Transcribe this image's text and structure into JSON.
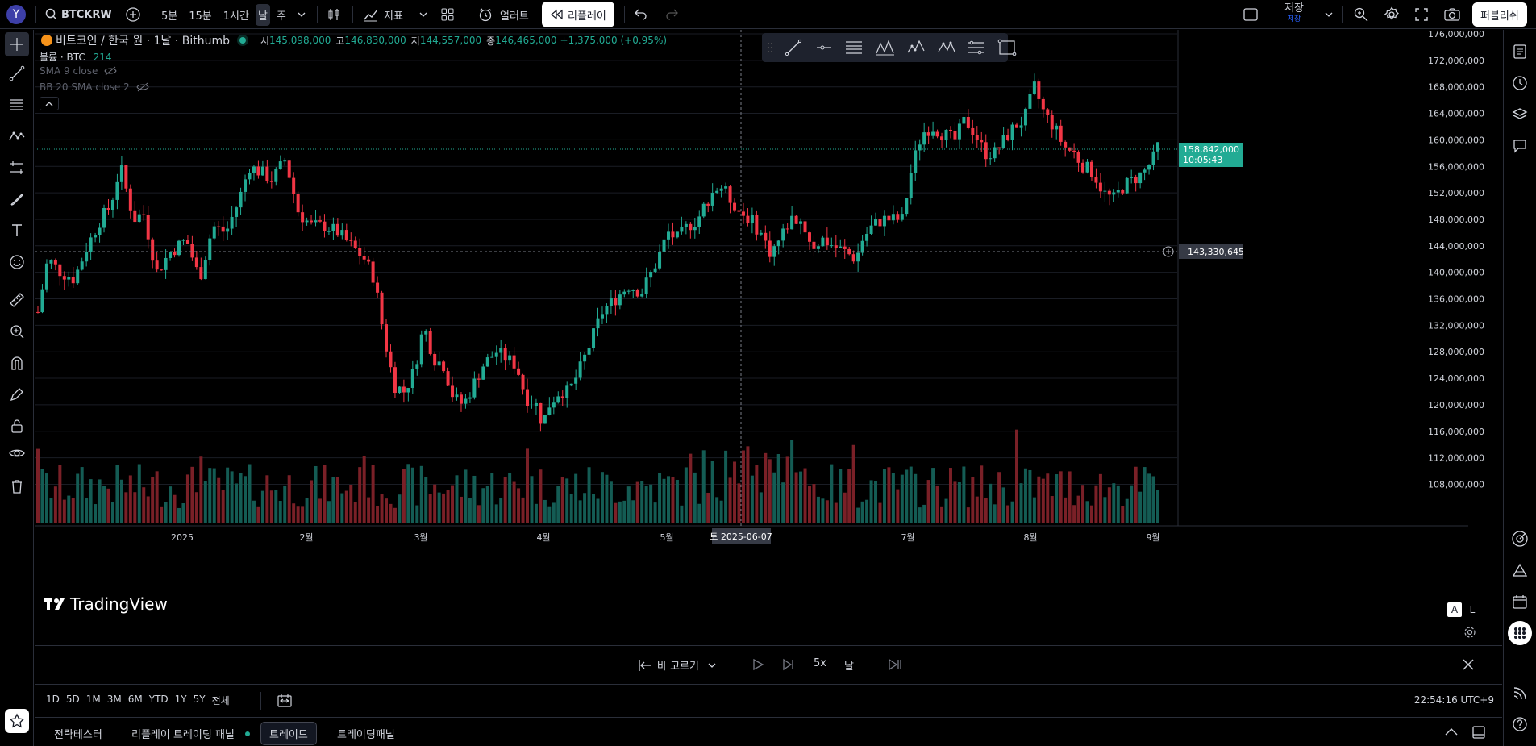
{
  "topbar": {
    "avatar": "Y",
    "symbol": "BTCKRW",
    "intervals": [
      "5분",
      "15분",
      "1시간",
      "날",
      "주"
    ],
    "active_interval": "날",
    "indicators": "지표",
    "alerts": "얼러트",
    "replay": "리플레이",
    "save": "저장",
    "save_sub": "저장",
    "publish": "퍼블리쉬"
  },
  "legend": {
    "title": "비트코인 / 한국 원 · 1날 · Bithumb",
    "o_label": "시",
    "o": "145,098,000",
    "h_label": "고",
    "h": "146,830,000",
    "l_label": "저",
    "l": "144,557,000",
    "c_label": "종",
    "c": "146,465,000",
    "change": "+1,375,000 (+0.95%)",
    "volume_label": "볼륨 · BTC",
    "volume": "214",
    "sma": "SMA 9 close",
    "bb": "BB 20 SMA close 2"
  },
  "price_axis": [
    "176,000,000",
    "172,000,000",
    "168,000,000",
    "164,000,000",
    "160,000,000",
    "156,000,000",
    "152,000,000",
    "148,000,000",
    "144,000,000",
    "140,000,000",
    "136,000,000",
    "132,000,000",
    "128,000,000",
    "124,000,000",
    "120,000,000",
    "116,000,000",
    "112,000,000",
    "108,000,000"
  ],
  "last_price": {
    "price": "158,842,000",
    "countdown": "10:05:43"
  },
  "crosshair": {
    "price": "143,330,645",
    "date": "토 2025-06-07"
  },
  "time_axis": [
    "2025",
    "2월",
    "3월",
    "4월",
    "5월",
    "7월",
    "8월",
    "9월"
  ],
  "scale_buttons": [
    "A",
    "L"
  ],
  "watermark": "TradingView",
  "replay_bar": {
    "select_bar": "바 고르기",
    "speed": "5x",
    "interval": "날"
  },
  "range_bar": {
    "ranges": [
      "1D",
      "5D",
      "1M",
      "3M",
      "6M",
      "YTD",
      "1Y",
      "5Y",
      "전체"
    ],
    "clock": "22:54:16 UTC+9"
  },
  "panels": {
    "tabs": [
      "전략테스터",
      "리플레이 트레이딩 패널",
      "트레이드",
      "트레이딩패널"
    ],
    "active": "트레이드"
  },
  "colors": {
    "up": "#22ab94",
    "down": "#f23645",
    "vol_up": "#145c54",
    "vol_down": "#7a2027",
    "accent": "#2962ff",
    "bg": "#000000"
  }
}
